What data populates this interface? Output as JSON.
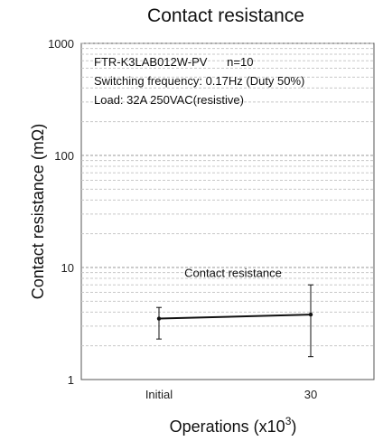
{
  "chart_data": {
    "type": "line",
    "title": "Contact resistance",
    "xlabel": "Operations (x10",
    "xlabel_sup": "3",
    "xlabel_suffix": ")",
    "ylabel": "Contact resistance (mΩ)",
    "yscale": "log",
    "ylim": [
      1,
      1000
    ],
    "ytick_labels": [
      "1",
      "10",
      "100",
      "1000"
    ],
    "categories": [
      "Initial",
      "30"
    ],
    "annotation_lines": [
      "FTR-K3LAB012W-PV      n=10",
      "Switching frequency: 0.17Hz (Duty 50%)",
      "Load: 32A 250VAC(resistive)"
    ],
    "grid": "dashed minor log gridlines",
    "series": [
      {
        "name": "Contact resistance",
        "values": [
          3.5,
          3.8
        ],
        "max": [
          4.4,
          7.0
        ],
        "min": [
          2.3,
          1.6
        ]
      }
    ]
  }
}
